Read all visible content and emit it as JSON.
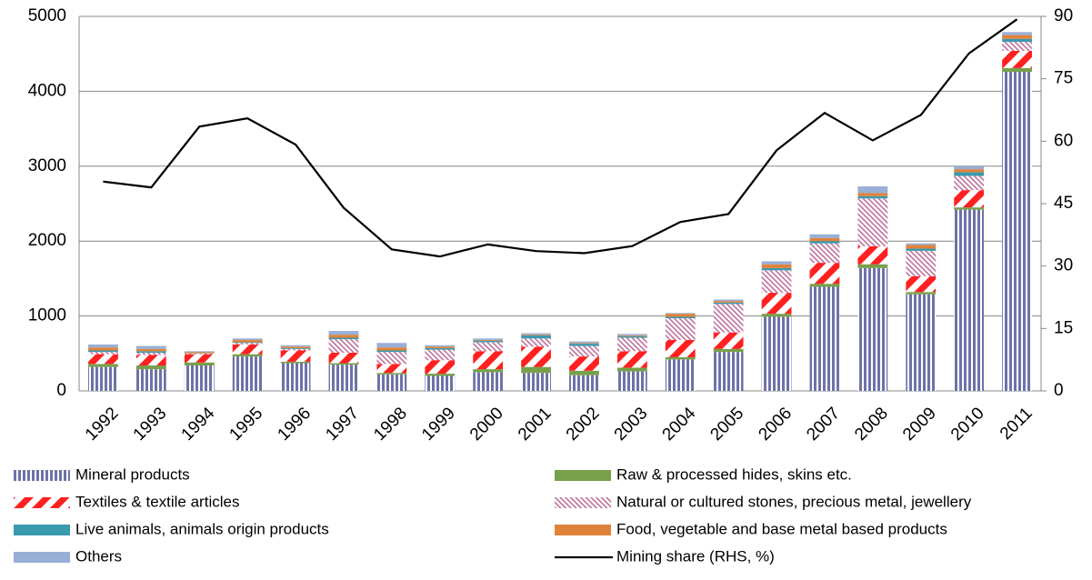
{
  "chart_data": {
    "type": "bar",
    "stacked": true,
    "categories": [
      "1992",
      "1993",
      "1994",
      "1995",
      "1996",
      "1997",
      "1998",
      "1999",
      "2000",
      "2001",
      "2002",
      "2003",
      "2004",
      "2005",
      "2006",
      "2007",
      "2008",
      "2009",
      "2010",
      "2011"
    ],
    "series": [
      {
        "name": "Mineral products",
        "color": "#6f72a8",
        "pattern": "vertical-stripes",
        "values": [
          320,
          290,
          340,
          460,
          370,
          350,
          220,
          200,
          250,
          240,
          210,
          260,
          420,
          520,
          990,
          1390,
          1640,
          1290,
          2420,
          4260
        ]
      },
      {
        "name": "Raw & processed hides, skins etc.",
        "color": "#77a04a",
        "values": [
          40,
          50,
          40,
          30,
          20,
          20,
          20,
          30,
          40,
          80,
          60,
          50,
          30,
          40,
          40,
          40,
          50,
          30,
          30,
          50
        ]
      },
      {
        "name": "Textiles & textile articles",
        "color": "#ff2020",
        "pattern": "diagonal-dashes",
        "values": [
          130,
          140,
          110,
          130,
          150,
          140,
          120,
          180,
          240,
          270,
          190,
          220,
          230,
          220,
          280,
          280,
          240,
          210,
          230,
          230
        ]
      },
      {
        "name": "Natural or cultured stones, precious metal, jewellery",
        "color": "#c0709a",
        "pattern": "diagonal-hatch",
        "values": [
          30,
          30,
          10,
          20,
          20,
          180,
          160,
          140,
          120,
          110,
          140,
          180,
          290,
          380,
          300,
          260,
          640,
          340,
          190,
          120
        ]
      },
      {
        "name": "Live animals, animals origin products",
        "color": "#3a9aae",
        "values": [
          20,
          20,
          5,
          10,
          10,
          20,
          20,
          20,
          20,
          40,
          30,
          20,
          20,
          20,
          30,
          30,
          30,
          30,
          50,
          40
        ]
      },
      {
        "name": "Food, vegetable and base metal based products",
        "color": "#e0833a",
        "values": [
          40,
          30,
          15,
          30,
          20,
          40,
          40,
          20,
          10,
          10,
          10,
          10,
          40,
          20,
          50,
          40,
          40,
          50,
          40,
          50
        ]
      },
      {
        "name": "Others",
        "color": "#99afd6",
        "values": [
          40,
          40,
          10,
          20,
          20,
          50,
          60,
          20,
          20,
          20,
          20,
          20,
          10,
          20,
          40,
          50,
          90,
          20,
          40,
          40
        ]
      },
      {
        "name": "Mining share (RHS, %)",
        "color": "#000000",
        "type": "line",
        "axis": "y2",
        "values": [
          50.3,
          48.9,
          63.5,
          65.5,
          59.2,
          44,
          34,
          32.3,
          35.2,
          33.6,
          33.1,
          34.8,
          40.6,
          42.5,
          57.8,
          66.8,
          60.2,
          66.3,
          81.1,
          89.3
        ]
      }
    ],
    "ylim": [
      0,
      5000
    ],
    "yticks": [
      0,
      1000,
      2000,
      3000,
      4000,
      5000
    ],
    "y2lim": [
      0,
      90
    ],
    "y2ticks": [
      0,
      15,
      30,
      45,
      60,
      75,
      90
    ],
    "grid": true,
    "legend": "bottom"
  }
}
